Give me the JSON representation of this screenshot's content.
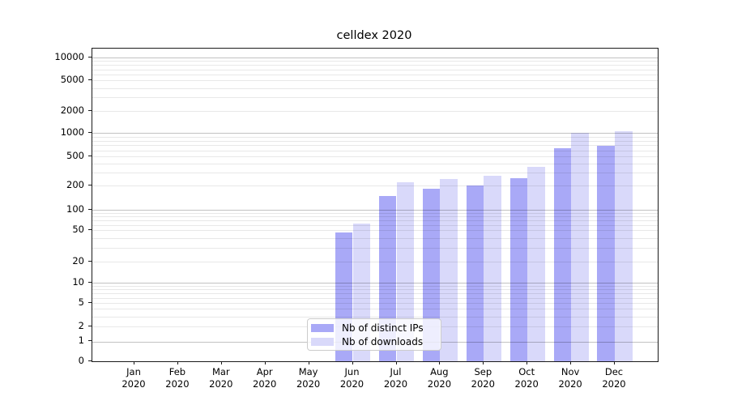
{
  "chart_data": {
    "type": "bar",
    "title": "celldex 2020",
    "categories": [
      "Jan 2020",
      "Feb 2020",
      "Mar 2020",
      "Apr 2020",
      "May 2020",
      "Jun 2020",
      "Jul 2020",
      "Aug 2020",
      "Sep 2020",
      "Oct 2020",
      "Nov 2020",
      "Dec 2020"
    ],
    "series": [
      {
        "name": "Nb of distinct IPs",
        "color": "#a9a9f7",
        "values": [
          0,
          0,
          0,
          0,
          0,
          47,
          150,
          185,
          200,
          252,
          645,
          685
        ]
      },
      {
        "name": "Nb of downloads",
        "color": "#d9d9fa",
        "values": [
          0,
          0,
          0,
          0,
          0,
          63,
          225,
          248,
          272,
          365,
          1000,
          1055
        ]
      }
    ],
    "yscale": "symlog",
    "y_ticks": [
      0,
      1,
      2,
      5,
      10,
      20,
      50,
      100,
      200,
      500,
      1000,
      2000,
      5000,
      10000
    ],
    "ylim": [
      0,
      13000
    ],
    "xlabel": "",
    "ylabel": "",
    "grid": "horizontal",
    "legend_position": "lower center",
    "bar_layout": "grouped"
  },
  "colors": {
    "major_gridline": "#c2c2c2",
    "minor_gridline": "#e9e9e9",
    "spine": "#1a1a1a"
  }
}
